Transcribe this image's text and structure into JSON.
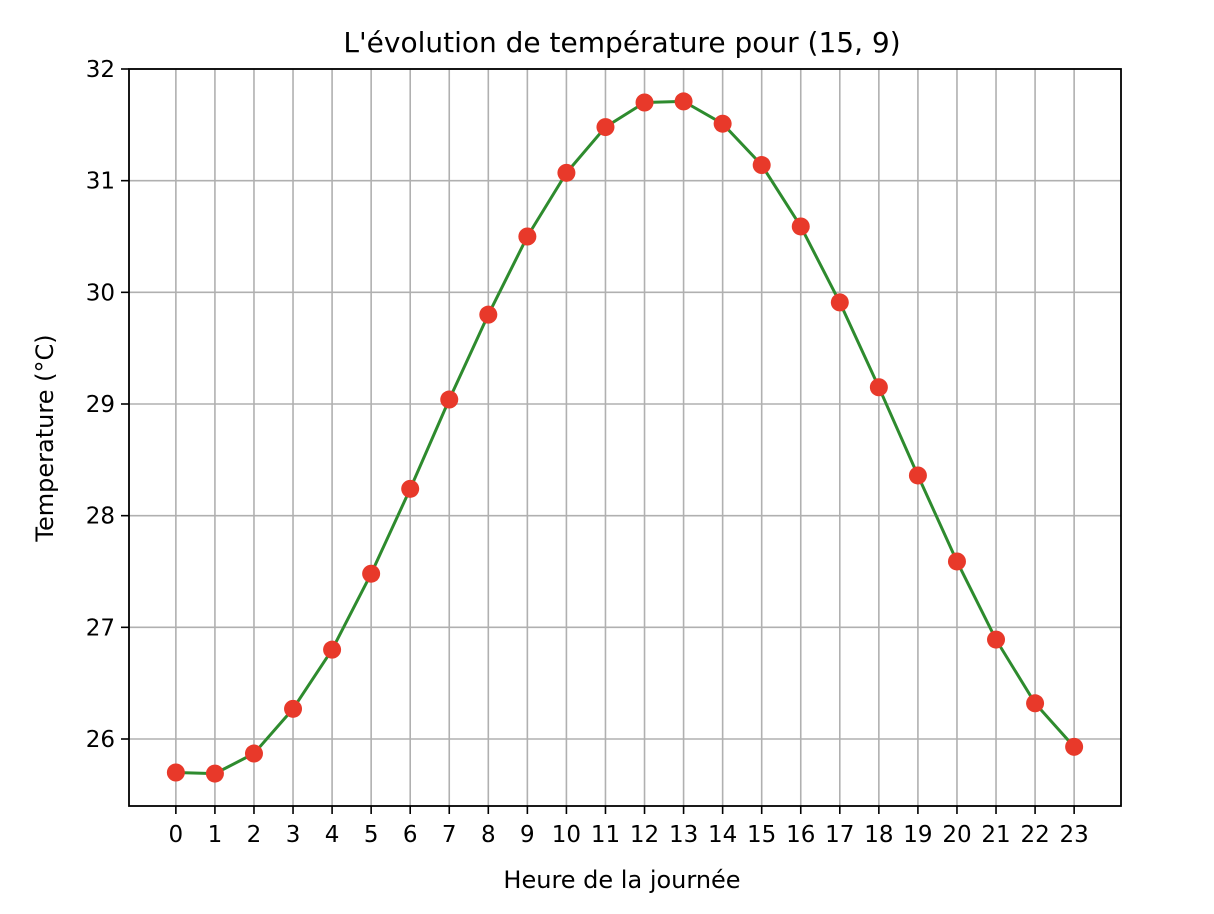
{
  "chart_data": {
    "type": "line",
    "title": "L'évolution de température pour (15, 9)",
    "xlabel": "Heure de la journée",
    "ylabel": "Temperature (°C)",
    "x": [
      0,
      1,
      2,
      3,
      4,
      5,
      6,
      7,
      8,
      9,
      10,
      11,
      12,
      13,
      14,
      15,
      16,
      17,
      18,
      19,
      20,
      21,
      22,
      23
    ],
    "xticks": [
      "0",
      "1",
      "2",
      "3",
      "4",
      "5",
      "6",
      "7",
      "8",
      "9",
      "10",
      "11",
      "12",
      "13",
      "14",
      "15",
      "16",
      "17",
      "18",
      "19",
      "20",
      "21",
      "22",
      "23"
    ],
    "yticks": [
      "26",
      "27",
      "28",
      "29",
      "30",
      "31",
      "32"
    ],
    "series": [
      {
        "values": [
          25.7,
          25.69,
          25.87,
          26.27,
          26.8,
          27.48,
          28.24,
          29.04,
          29.8,
          30.5,
          31.07,
          31.48,
          31.7,
          31.71,
          31.51,
          31.14,
          30.59,
          29.91,
          29.15,
          28.36,
          27.59,
          26.89,
          26.32,
          25.93
        ],
        "line_color": "#2e8b2e",
        "marker_color": "#e8392a"
      }
    ],
    "xlim": [
      -1.2,
      24.2
    ],
    "ylim": [
      25.4,
      32.0
    ],
    "grid": true
  }
}
